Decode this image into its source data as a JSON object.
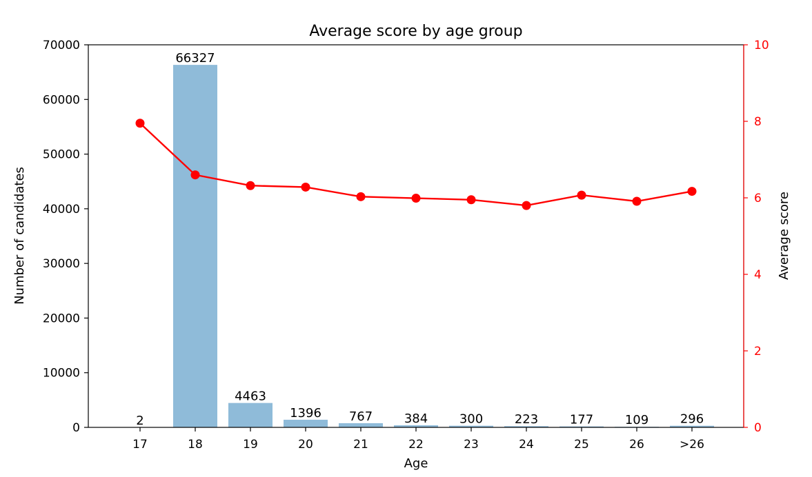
{
  "chart_data": {
    "type": "bar",
    "title": "Average score by age group",
    "xlabel": "Age",
    "ylabel": "Number of candidates",
    "ylabel_right": "Average score",
    "categories": [
      "17",
      "18",
      "19",
      "20",
      "21",
      "22",
      "23",
      "24",
      "25",
      "26",
      ">26"
    ],
    "ylim": [
      0,
      70000
    ],
    "y_ticks": [
      0,
      10000,
      20000,
      30000,
      40000,
      50000,
      60000,
      70000
    ],
    "ylim_right": [
      0,
      10
    ],
    "y_ticks_right": [
      0,
      2,
      4,
      6,
      8,
      10
    ],
    "series": [
      {
        "type": "bar",
        "axis": "left",
        "color": "#8fbbd9",
        "values": [
          2,
          66327,
          4463,
          1396,
          767,
          384,
          300,
          223,
          177,
          109,
          296
        ]
      },
      {
        "type": "line",
        "axis": "right",
        "color": "#ff0000",
        "values": [
          7.95,
          6.6,
          6.32,
          6.28,
          6.03,
          5.99,
          5.95,
          5.8,
          6.07,
          5.91,
          6.17
        ]
      }
    ],
    "right_axis_color": "#ff0000",
    "grid": false,
    "bar_data_labels": [
      "2",
      "66327",
      "4463",
      "1396",
      "767",
      "384",
      "300",
      "223",
      "177",
      "109",
      "296"
    ]
  }
}
